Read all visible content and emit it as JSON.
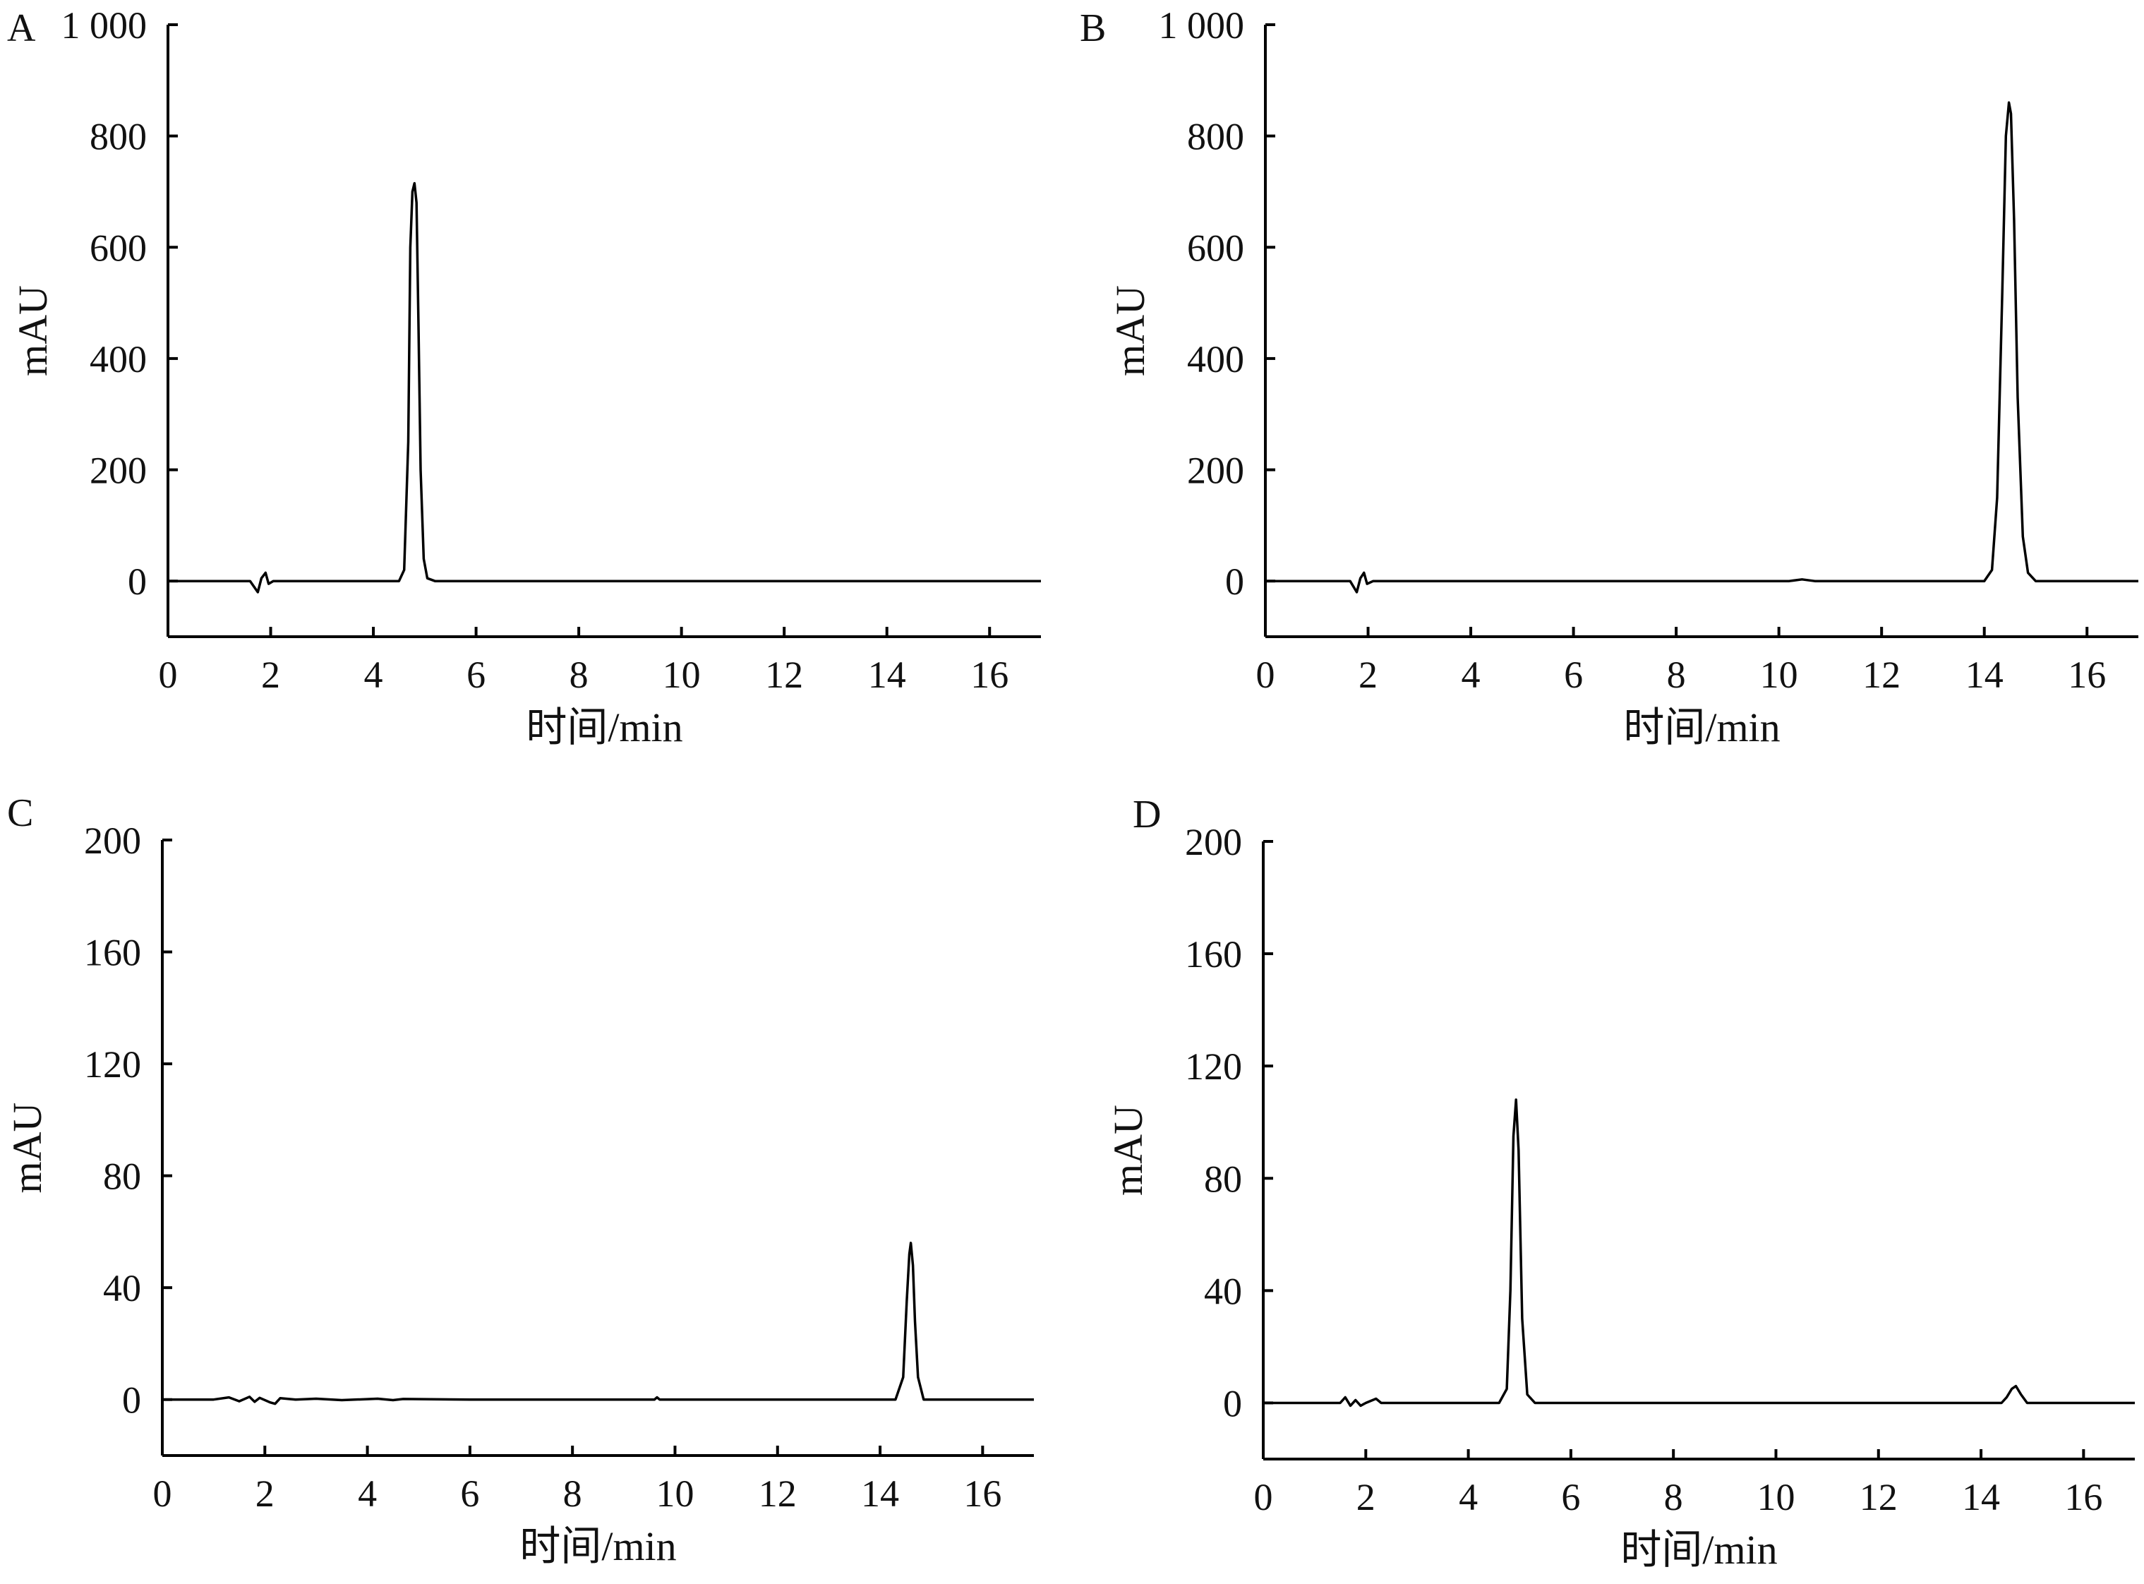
{
  "chart_data": [
    {
      "panel": "A",
      "type": "line",
      "xlabel": "时间/min",
      "ylabel": "mAU",
      "xlim": [
        0,
        17
      ],
      "ylim": [
        -100,
        1000
      ],
      "xticks": [
        0,
        2,
        4,
        6,
        8,
        10,
        12,
        14,
        16
      ],
      "xtick_labels": [
        "0",
        "2",
        "4",
        "6",
        "8",
        "10",
        "12",
        "14",
        "16"
      ],
      "yticks": [
        0,
        200,
        400,
        600,
        800,
        1000
      ],
      "ytick_labels": [
        "0",
        "200",
        "400",
        "600",
        "800",
        "1 000"
      ],
      "series": [
        {
          "x": [
            0,
            1.6,
            1.75,
            1.82,
            1.9,
            1.96,
            2.05,
            2.3,
            4.5,
            4.6,
            4.68,
            4.72,
            4.76,
            4.8,
            4.84,
            4.88,
            4.92,
            4.98,
            5.05,
            5.2,
            17
          ],
          "y": [
            0,
            0,
            -20,
            5,
            15,
            -5,
            0,
            0,
            0,
            20,
            250,
            600,
            700,
            715,
            680,
            450,
            200,
            40,
            5,
            0,
            0
          ]
        }
      ]
    },
    {
      "panel": "B",
      "type": "line",
      "xlabel": "时间/min",
      "ylabel": "mAU",
      "xlim": [
        0,
        17
      ],
      "ylim": [
        -100,
        1000
      ],
      "xticks": [
        0,
        2,
        4,
        6,
        8,
        10,
        12,
        14,
        16
      ],
      "xtick_labels": [
        "0",
        "2",
        "4",
        "6",
        "8",
        "10",
        "12",
        "14",
        "16"
      ],
      "yticks": [
        0,
        200,
        400,
        600,
        800,
        1000
      ],
      "ytick_labels": [
        "0",
        "200",
        "400",
        "600",
        "800",
        "1 000"
      ],
      "series": [
        {
          "x": [
            0,
            1.65,
            1.78,
            1.85,
            1.92,
            1.98,
            2.1,
            2.5,
            10.2,
            10.45,
            10.7,
            14.0,
            14.15,
            14.25,
            14.35,
            14.42,
            14.48,
            14.52,
            14.58,
            14.65,
            14.75,
            14.85,
            15.0,
            17
          ],
          "y": [
            0,
            0,
            -20,
            5,
            15,
            -5,
            0,
            0,
            0,
            3,
            0,
            0,
            20,
            150,
            520,
            800,
            860,
            840,
            650,
            330,
            80,
            15,
            0,
            0
          ]
        }
      ]
    },
    {
      "panel": "C",
      "type": "line",
      "xlabel": "时间/min",
      "ylabel": "mAU",
      "xlim": [
        0,
        17
      ],
      "ylim": [
        -20,
        200
      ],
      "xticks": [
        0,
        2,
        4,
        6,
        8,
        10,
        12,
        14,
        16
      ],
      "xtick_labels": [
        "0",
        "2",
        "4",
        "6",
        "8",
        "10",
        "12",
        "14",
        "16"
      ],
      "yticks": [
        0,
        40,
        80,
        120,
        160,
        200
      ],
      "ytick_labels": [
        "0",
        "40",
        "80",
        "120",
        "160",
        "200"
      ],
      "series": [
        {
          "x": [
            0,
            1.0,
            1.3,
            1.5,
            1.7,
            1.8,
            1.9,
            2.1,
            2.2,
            2.3,
            2.6,
            3.0,
            3.5,
            4.2,
            4.5,
            4.7,
            6.0,
            9.6,
            9.65,
            9.7,
            14.3,
            14.45,
            14.52,
            14.57,
            14.6,
            14.64,
            14.68,
            14.74,
            14.85,
            17
          ],
          "y": [
            0,
            0,
            0.8,
            -0.6,
            1,
            -0.8,
            0.6,
            -1,
            -1.5,
            0.5,
            0,
            0.3,
            -0.2,
            0.3,
            -0.2,
            0.2,
            0,
            0,
            0.8,
            0,
            0,
            8,
            35,
            52,
            56,
            48,
            28,
            8,
            0,
            0
          ]
        }
      ]
    },
    {
      "panel": "D",
      "type": "line",
      "xlabel": "时间/min",
      "ylabel": "mAU",
      "xlim": [
        0,
        17
      ],
      "ylim": [
        -20,
        200
      ],
      "xticks": [
        0,
        2,
        4,
        6,
        8,
        10,
        12,
        14,
        16
      ],
      "xtick_labels": [
        "0",
        "2",
        "4",
        "6",
        "8",
        "10",
        "12",
        "14",
        "16"
      ],
      "yticks": [
        0,
        40,
        80,
        120,
        160,
        200
      ],
      "ytick_labels": [
        "0",
        "40",
        "80",
        "120",
        "160",
        "200"
      ],
      "series": [
        {
          "x": [
            0,
            1.5,
            1.6,
            1.7,
            1.8,
            1.9,
            2.0,
            2.2,
            2.3,
            4.6,
            4.75,
            4.82,
            4.88,
            4.93,
            4.98,
            5.05,
            5.15,
            5.3,
            14.4,
            14.5,
            14.6,
            14.68,
            14.78,
            14.9,
            17
          ],
          "y": [
            0,
            0,
            2,
            -1,
            1,
            -1,
            0,
            1.5,
            0,
            0,
            5,
            40,
            95,
            108,
            90,
            30,
            3,
            0,
            0,
            2,
            5,
            6,
            3,
            0,
            0
          ]
        }
      ]
    }
  ]
}
